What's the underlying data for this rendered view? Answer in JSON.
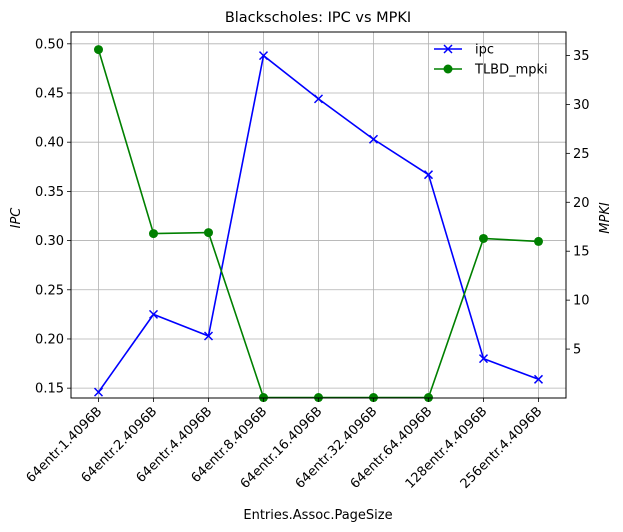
{
  "chart_data": {
    "type": "line",
    "title": "Blackscholes: IPC vs MPKI",
    "xlabel": "Entries.Assoc.PageSize",
    "categories": [
      "64entr.1.4096B",
      "64entr.2.4096B",
      "64entr.4.4096B",
      "64entr.8.4096B",
      "64entr.16.4096B",
      "64entr.32.4096B",
      "64entr.64.4096B",
      "128entr.4.4096B",
      "256entr.4.4096B"
    ],
    "left_axis": {
      "label": "IPC",
      "ylim": [
        0.14,
        0.512
      ],
      "ticks": [
        0.15,
        0.2,
        0.25,
        0.3,
        0.35,
        0.4,
        0.45,
        0.5
      ],
      "tick_labels": [
        "0.15",
        "0.20",
        "0.25",
        "0.30",
        "0.35",
        "0.40",
        "0.45",
        "0.50"
      ]
    },
    "right_axis": {
      "label": "MPKI",
      "ylim": [
        0.0,
        37.4
      ],
      "ticks": [
        5,
        10,
        15,
        20,
        25,
        30,
        35
      ],
      "tick_labels": [
        "5",
        "10",
        "15",
        "20",
        "25",
        "30",
        "35"
      ]
    },
    "series": [
      {
        "name": "ipc",
        "axis": "left",
        "color": "#0000ff",
        "marker": "x",
        "values": [
          0.146,
          0.225,
          0.203,
          0.488,
          0.444,
          0.403,
          0.367,
          0.18,
          0.159
        ]
      },
      {
        "name": "TLBD_mpki",
        "axis": "right",
        "color": "#008000",
        "marker": "o",
        "values": [
          35.6,
          16.8,
          16.9,
          0.05,
          0.05,
          0.05,
          0.05,
          16.3,
          16.0
        ]
      }
    ],
    "grid": true,
    "legend_position": "top-right"
  }
}
